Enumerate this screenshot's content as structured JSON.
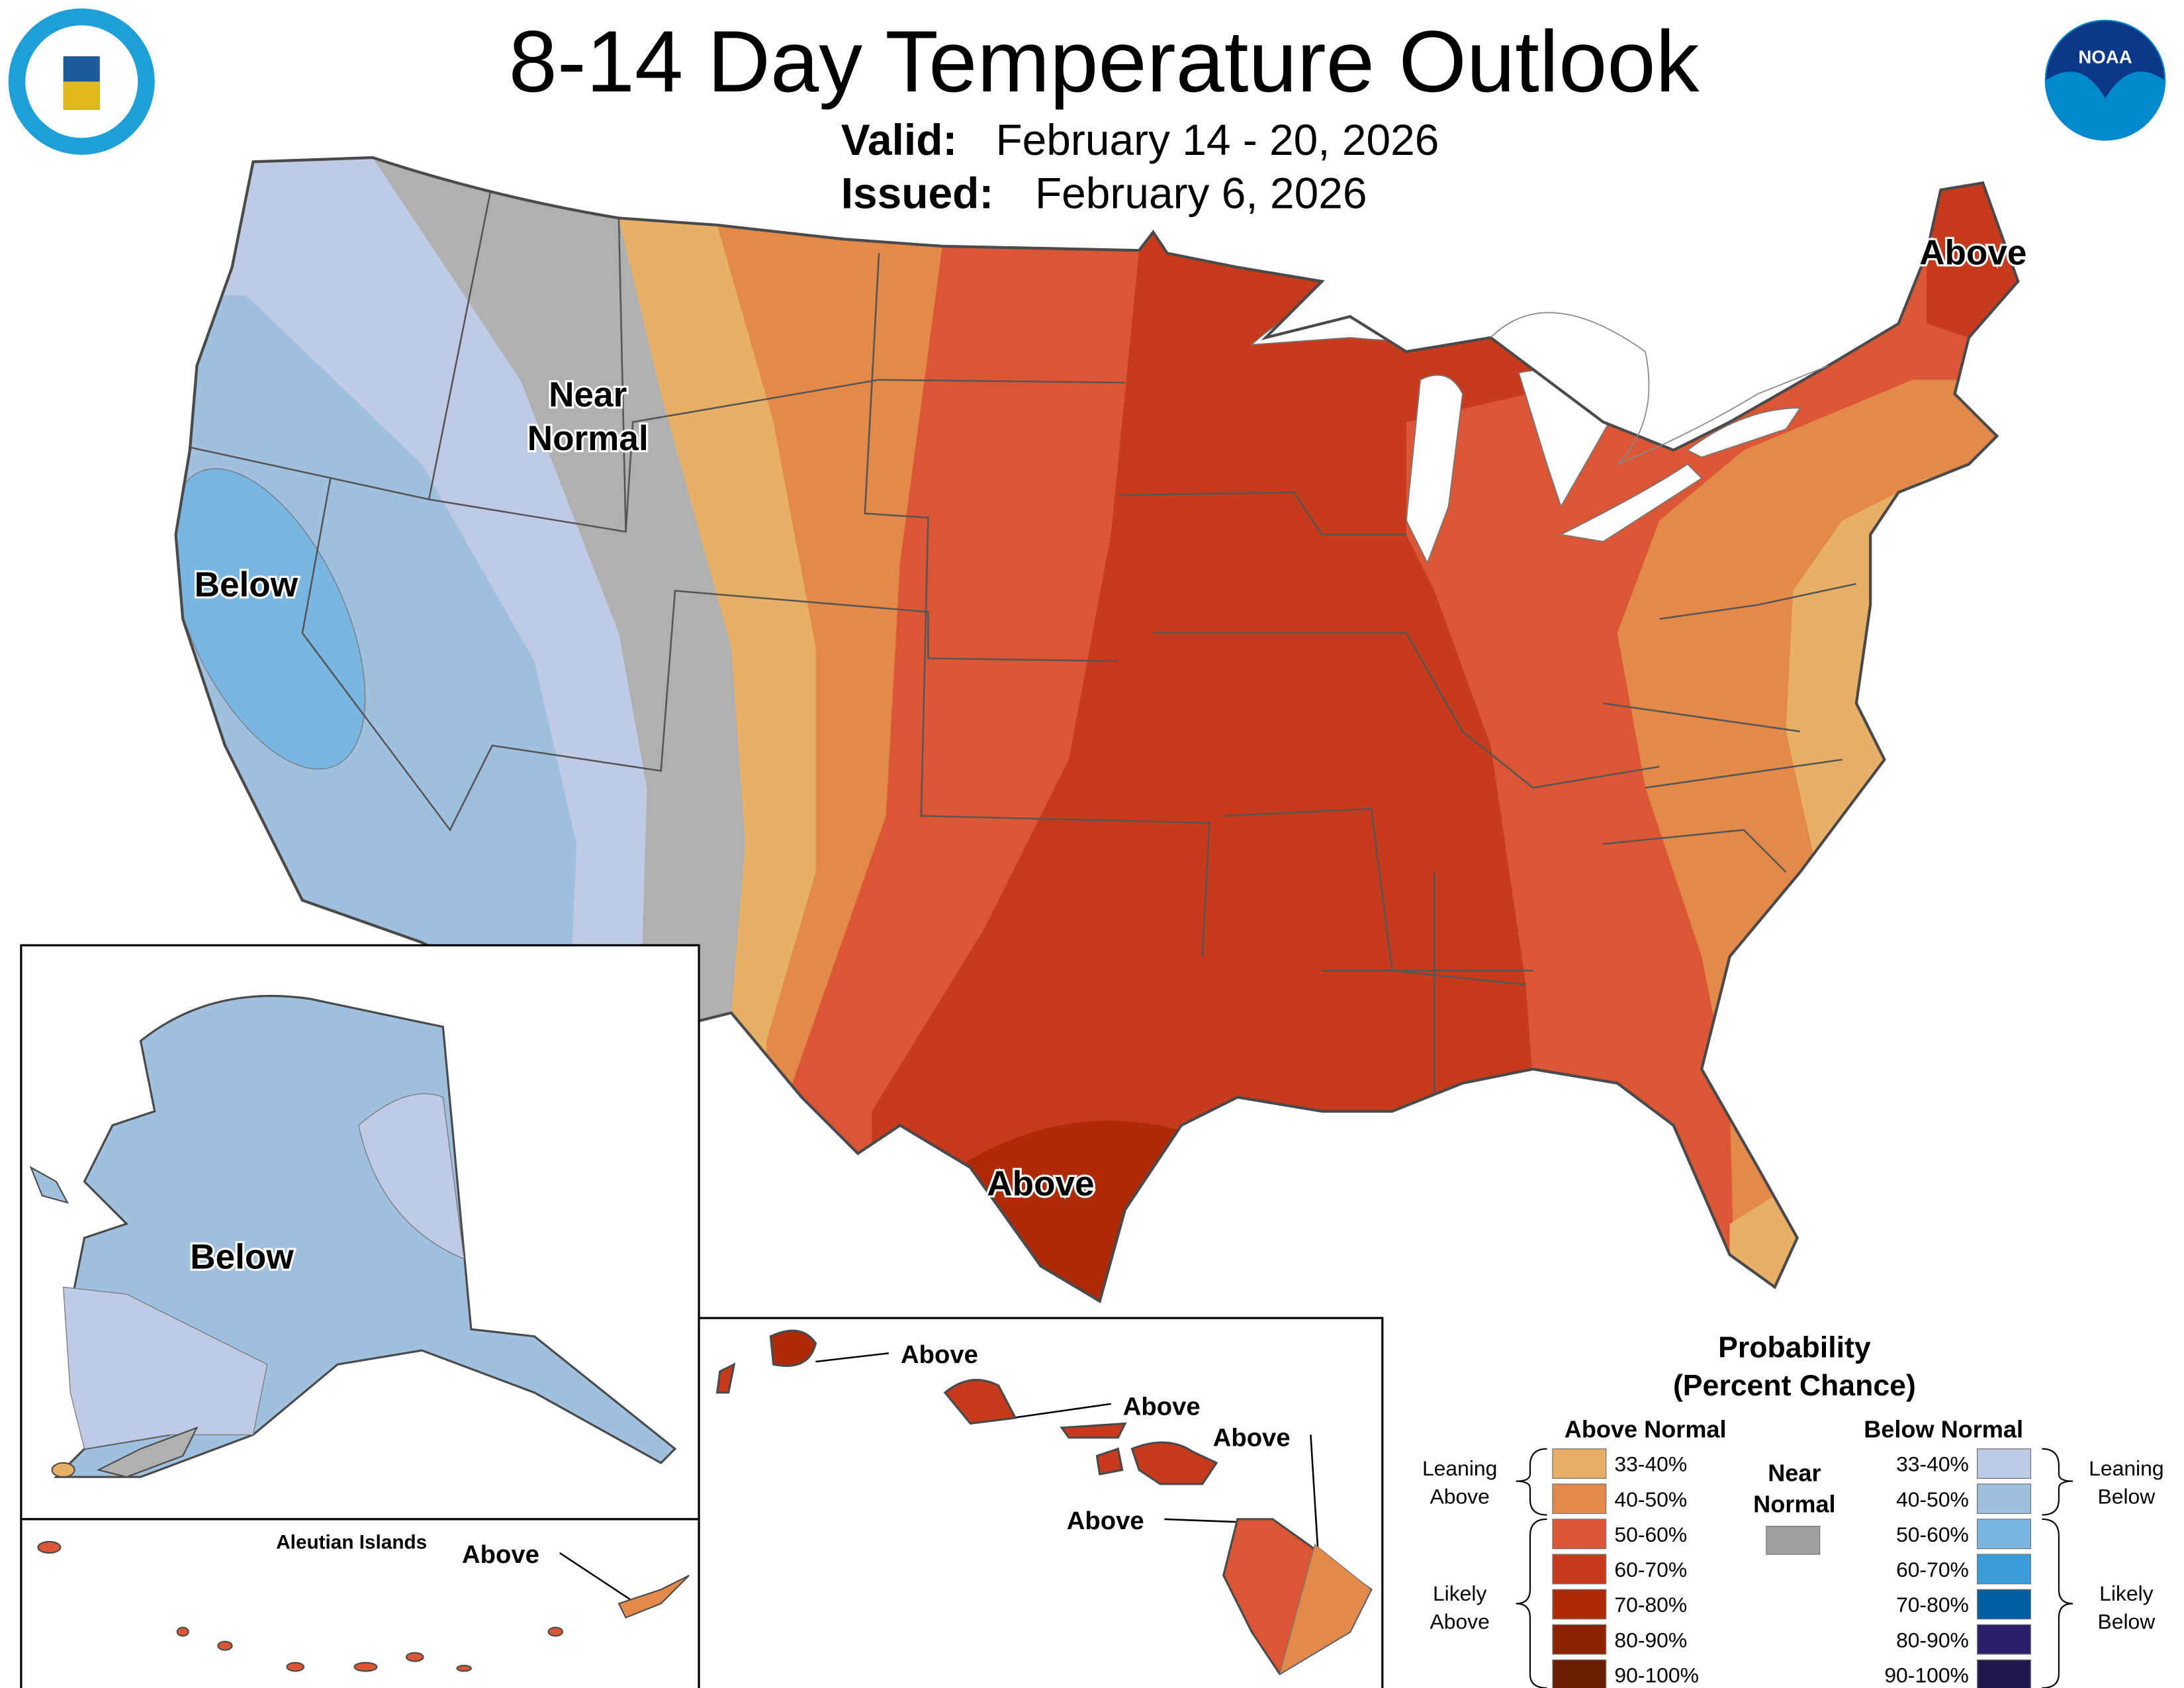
{
  "header": {
    "title": "8-14 Day Temperature Outlook",
    "valid_label": "Valid:",
    "valid_value": "February 14 - 20, 2026",
    "issued_label": "Issued:",
    "issued_value": "February 6, 2026",
    "logos": [
      "department-of-commerce-seal",
      "noaa-logo"
    ],
    "noaa_text": "NOAA"
  },
  "map": {
    "labels": {
      "near_normal_1": "Near",
      "near_normal_2": "Normal",
      "west_below": "Below",
      "texas_above": "Above",
      "maine_above": "Above",
      "alaska_below": "Below",
      "aleutian_title": "Aleutian Islands",
      "aleutian_above": "Above",
      "hawaii_above_1": "Above",
      "hawaii_above_2": "Above",
      "hawaii_above_3": "Above",
      "hawaii_above_4": "Above"
    }
  },
  "legend": {
    "title_1": "Probability",
    "title_2": "(Percent Chance)",
    "above_header": "Above Normal",
    "below_header": "Below Normal",
    "near_1": "Near",
    "near_2": "Normal",
    "near_color": "#a0a0a0",
    "leaning_above_1": "Leaning",
    "leaning_above_2": "Above",
    "likely_above_1": "Likely",
    "likely_above_2": "Above",
    "leaning_below_1": "Leaning",
    "leaning_below_2": "Below",
    "likely_below_1": "Likely",
    "likely_below_2": "Below",
    "above": [
      {
        "range": "33-40%",
        "color": "#e8b066"
      },
      {
        "range": "40-50%",
        "color": "#e38a4a"
      },
      {
        "range": "50-60%",
        "color": "#db5634"
      },
      {
        "range": "60-70%",
        "color": "#c83a1c"
      },
      {
        "range": "70-80%",
        "color": "#b02a06"
      },
      {
        "range": "80-90%",
        "color": "#8e2200"
      },
      {
        "range": "90-100%",
        "color": "#6c1e00"
      }
    ],
    "below": [
      {
        "range": "33-40%",
        "color": "#bfcbe5"
      },
      {
        "range": "40-50%",
        "color": "#9fc0df"
      },
      {
        "range": "50-60%",
        "color": "#7ab6e2"
      },
      {
        "range": "60-70%",
        "color": "#3b9edb"
      },
      {
        "range": "70-80%",
        "color": "#005ea2"
      },
      {
        "range": "80-90%",
        "color": "#2e1f6e"
      },
      {
        "range": "90-100%",
        "color": "#1f1a4e"
      }
    ]
  }
}
